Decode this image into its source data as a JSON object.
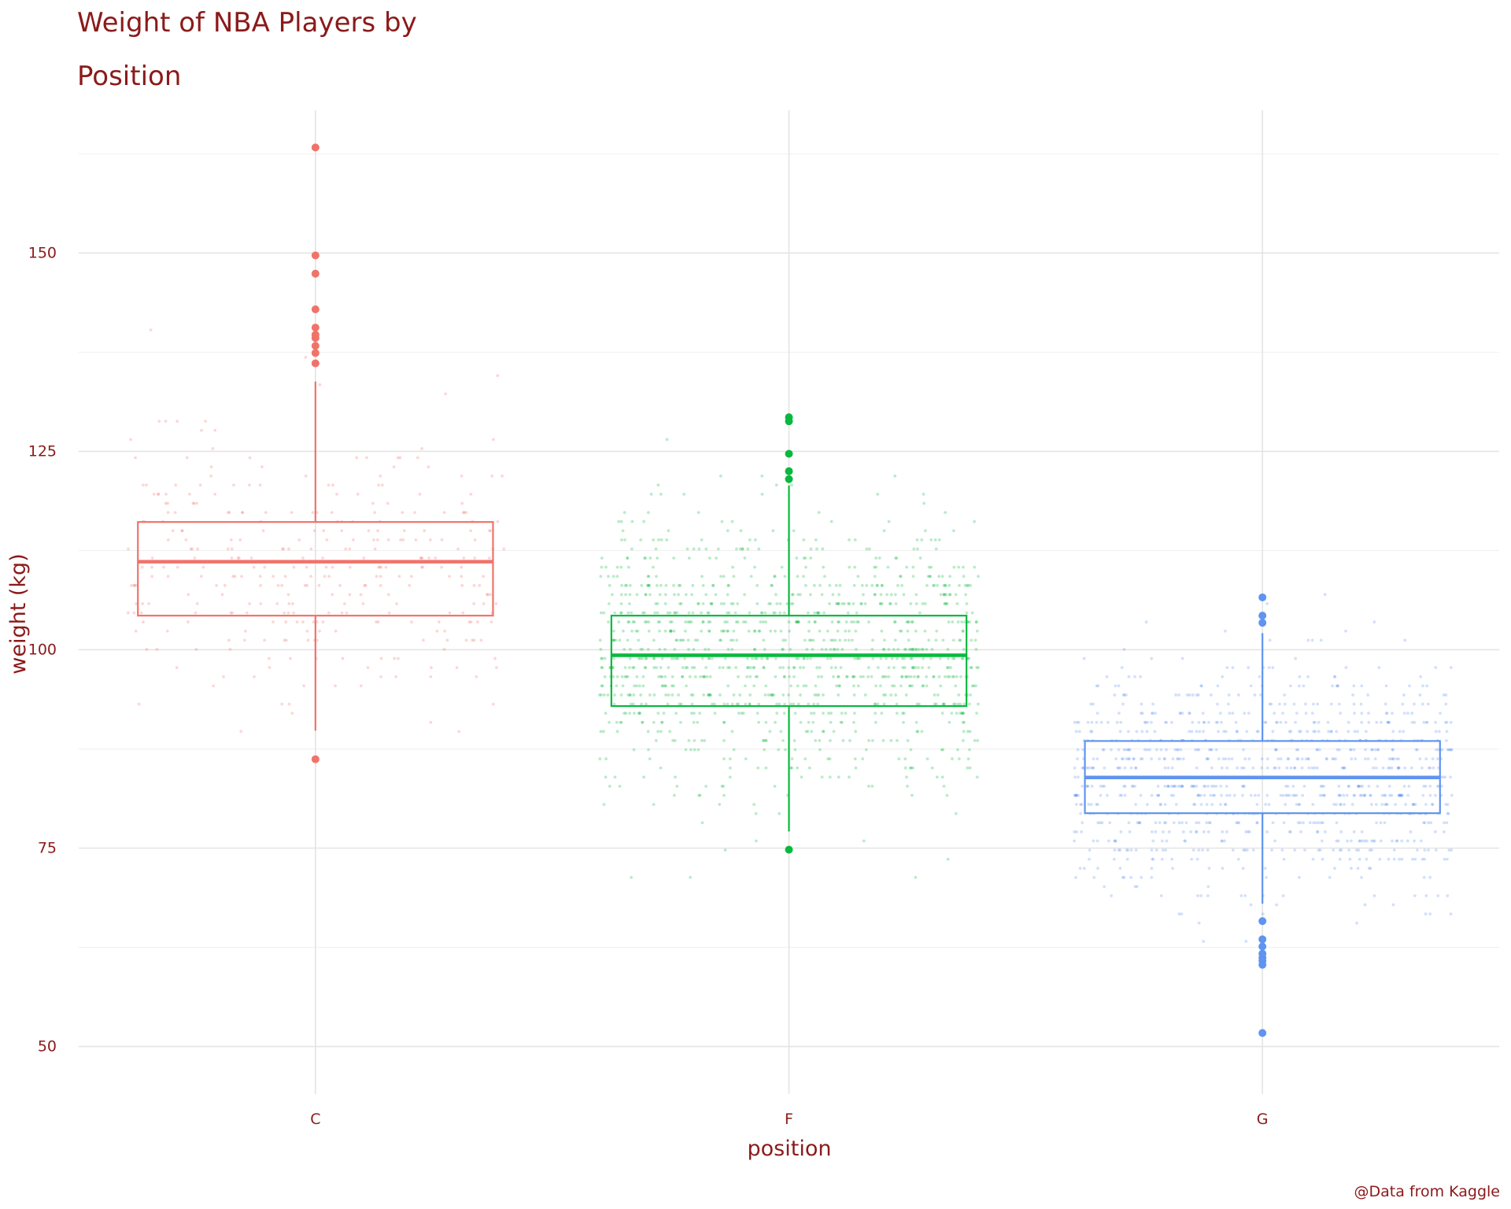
{
  "chart_data": {
    "type": "box",
    "title_lines": [
      "Weight of NBA Players by",
      "Position"
    ],
    "xlabel": "position",
    "ylabel": "weight (kg)",
    "caption": "@Data from Kaggle",
    "categories": [
      "C",
      "F",
      "G"
    ],
    "ylim": [
      44,
      168
    ],
    "yticks": [
      50,
      75,
      100,
      125,
      150
    ],
    "grid": true,
    "legend": "none",
    "colors": {
      "C": "#f0736a",
      "F": "#09b83e",
      "G": "#5f94f0"
    },
    "boxes": [
      {
        "category": "C",
        "q1": 104.3,
        "median": 111.1,
        "q3": 116.1,
        "whisker_low": 89.8,
        "whisker_high": 133.8,
        "outliers": [
          163.3,
          149.7,
          147.4,
          142.9,
          140.6,
          139.7,
          139.3,
          138.3,
          137.4,
          136.1,
          86.2
        ]
      },
      {
        "category": "F",
        "q1": 92.9,
        "median": 99.3,
        "q3": 104.3,
        "whisker_low": 77.1,
        "whisker_high": 120.7,
        "outliers": [
          129.3,
          128.8,
          124.7,
          122.5,
          121.5,
          74.8
        ]
      },
      {
        "category": "G",
        "q1": 79.4,
        "median": 83.9,
        "q3": 88.5,
        "whisker_low": 68.0,
        "whisker_high": 102.1,
        "outliers": [
          106.6,
          104.3,
          103.4,
          65.8,
          63.5,
          62.6,
          61.7,
          61.2,
          60.8,
          60.3,
          51.7
        ]
      }
    ]
  }
}
